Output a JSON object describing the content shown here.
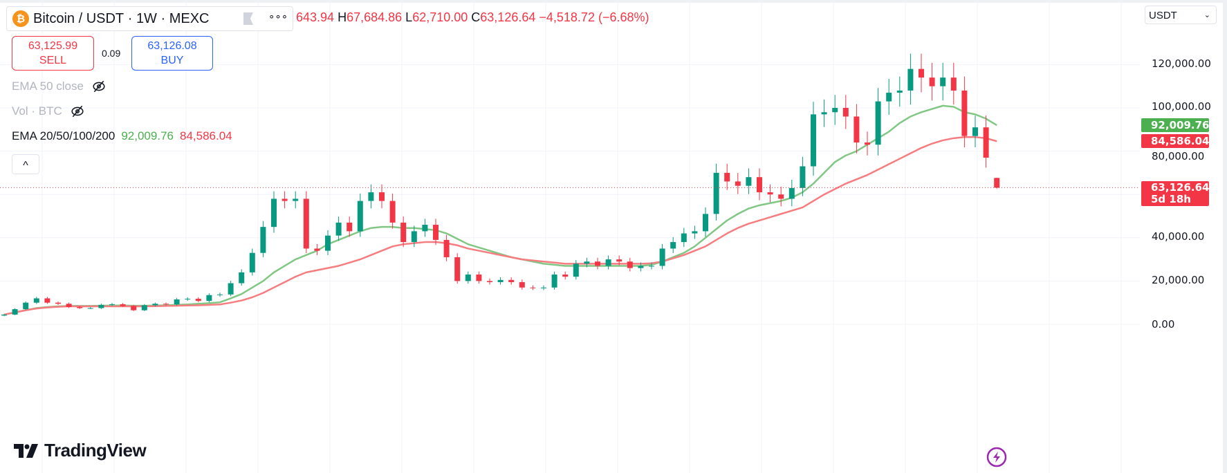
{
  "header": {
    "symbol": "Bitcoin / USDT",
    "interval": "1W",
    "exchange": "MEXC",
    "more_label": "∘∘∘",
    "ohlc": {
      "open_partial": "643.94",
      "h_label": "H",
      "high": "67,684.86",
      "l_label": "L",
      "low": "62,710.00",
      "c_label": "C",
      "close": "63,126.64",
      "change": "−4,518.72 (−6.68%)"
    },
    "sell_price": "63,125.99",
    "sell_label": "SELL",
    "spread": "0.09",
    "buy_price": "63,126.08",
    "buy_label": "BUY"
  },
  "indicators": [
    {
      "label": "EMA 50 close",
      "hidden": true
    },
    {
      "label": "Vol · BTC",
      "hidden": true
    },
    {
      "label": "EMA 20/50/100/200",
      "values": [
        "92,009.76",
        "84,586.04"
      ]
    }
  ],
  "collapse_label": "^",
  "currency_select": "USDT",
  "logo_text": "TradingView",
  "price_axis": {
    "ticks": [
      "120,000.00",
      "100,000.00",
      "80,000.00",
      "40,000.00",
      "20,000.00",
      "0.00"
    ],
    "ema_green_tag": "92,009.76",
    "ema_red_tag": "84,586.04",
    "last_price_tag": "63,126.64",
    "countdown": "5d 18h"
  },
  "colors": {
    "up": "#089981",
    "down": "#f23645",
    "ema_green": "#81c784",
    "ema_red": "#f77c80",
    "tag_green": "#4caf50",
    "tag_red": "#f23645"
  },
  "chart_data": {
    "type": "candlestick",
    "ylim": [
      0,
      130000
    ],
    "yticks": [
      0,
      20000,
      40000,
      80000,
      100000,
      120000
    ],
    "grid": true,
    "last_candle": {
      "open": 67643.94,
      "high": 67684.86,
      "low": 62710.0,
      "close": 63126.64
    },
    "closes": [
      4500,
      7000,
      10000,
      12000,
      10000,
      9500,
      8000,
      7500,
      7500,
      9000,
      9300,
      8500,
      6500,
      8800,
      9500,
      9200,
      11500,
      11800,
      10800,
      13500,
      13800,
      19000,
      24000,
      33000,
      45000,
      58000,
      57000,
      58000,
      35000,
      34000,
      41000,
      47000,
      43000,
      57000,
      61000,
      57000,
      47000,
      38000,
      43000,
      46000,
      39000,
      31000,
      20000,
      23000,
      20000,
      19500,
      20500,
      19500,
      17000,
      16800,
      17000,
      23000,
      22000,
      28000,
      29000,
      27000,
      30000,
      29000,
      26000,
      27000,
      27000,
      35000,
      38000,
      42000,
      43000,
      51000,
      70000,
      66000,
      64000,
      68000,
      61000,
      60000,
      58000,
      63000,
      73000,
      97000,
      98000,
      100000,
      96000,
      84000,
      83000,
      103000,
      107000,
      108000,
      118000,
      114000,
      110000,
      114000,
      108000,
      87000,
      91000,
      77000,
      63126.64
    ],
    "series": [
      {
        "name": "EMA 20/50/100/200",
        "color": "#81c784",
        "values": [
          4500,
          5500,
          6500,
          7500,
          8000,
          8300,
          8500,
          8500,
          8500,
          8600,
          8700,
          8700,
          8600,
          8600,
          8700,
          8800,
          9000,
          9200,
          9500,
          9800,
          10200,
          12000,
          14000,
          17000,
          20000,
          24000,
          27000,
          30000,
          32000,
          34000,
          37000,
          39000,
          41000,
          43000,
          44500,
          45000,
          45000,
          44500,
          44500,
          44000,
          43500,
          42000,
          39500,
          37000,
          35500,
          34000,
          32500,
          31000,
          30000,
          29000,
          28000,
          27500,
          27000,
          27000,
          27000,
          27000,
          27000,
          27000,
          27000,
          27000,
          27500,
          29000,
          31000,
          33000,
          36000,
          40000,
          44000,
          48000,
          51000,
          53500,
          55000,
          56000,
          57000,
          58500,
          61000,
          65000,
          70000,
          75000,
          78000,
          80000,
          83000,
          86000,
          89000,
          93000,
          96000,
          98000,
          99500,
          101000,
          100500,
          98000,
          97000,
          95000,
          92009.76
        ]
      },
      {
        "name": "EMA 20/50/100/200",
        "color": "#f77c80",
        "values": [
          4500,
          5500,
          6500,
          7300,
          7800,
          8100,
          8300,
          8300,
          8300,
          8300,
          8300,
          8300,
          8300,
          8300,
          8400,
          8500,
          8600,
          8700,
          8800,
          9000,
          9200,
          10000,
          11000,
          12500,
          14500,
          17000,
          19500,
          22000,
          24000,
          25000,
          26000,
          27000,
          28500,
          30000,
          32000,
          34000,
          36000,
          37000,
          37500,
          38000,
          38000,
          37500,
          36500,
          35000,
          34000,
          33000,
          32000,
          31000,
          30000,
          29500,
          29000,
          28500,
          28000,
          28000,
          28000,
          28000,
          28000,
          28000,
          28000,
          28000,
          28200,
          29000,
          30500,
          32000,
          34000,
          36000,
          39000,
          42000,
          44500,
          46500,
          48000,
          49500,
          51000,
          52500,
          54000,
          57000,
          60000,
          62500,
          65000,
          67000,
          69000,
          71500,
          74000,
          76500,
          79000,
          81500,
          83500,
          85000,
          86000,
          86500,
          86500,
          86000,
          84586.04
        ]
      }
    ]
  }
}
